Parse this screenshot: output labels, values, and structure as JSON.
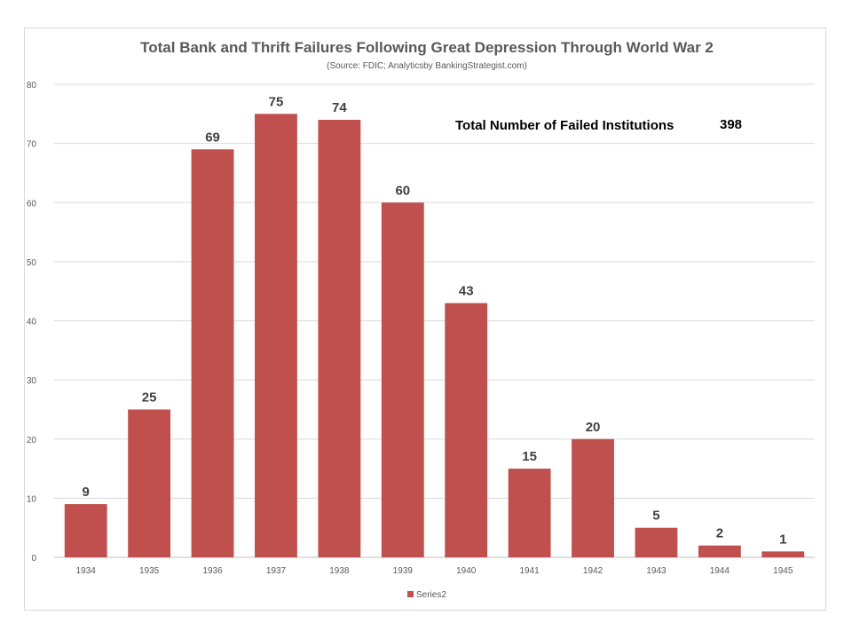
{
  "chart_data": {
    "type": "bar",
    "title": "Total Bank and Thrift Failures Following Great Depression Through World War 2",
    "subtitle": "(Source: FDIC; Analyticsby BankingStrategist.com)",
    "xlabel": "",
    "ylabel": "",
    "categories": [
      "1934",
      "1935",
      "1936",
      "1937",
      "1938",
      "1939",
      "1940",
      "1941",
      "1942",
      "1943",
      "1944",
      "1945"
    ],
    "series": [
      {
        "name": "Series2",
        "values": [
          9,
          25,
          69,
          75,
          74,
          60,
          43,
          15,
          20,
          5,
          2,
          1
        ],
        "color": "#c0504d"
      }
    ],
    "ylim": [
      0,
      80
    ],
    "yticks": [
      0,
      10,
      20,
      30,
      40,
      50,
      60,
      70,
      80
    ],
    "grid": true,
    "legend_position": "bottom",
    "annotation": {
      "label": "Total Number of Failed Institutions",
      "value": "398"
    },
    "colors": {
      "bar": "#c0504d",
      "grid": "#d9d9d9",
      "axis": "#bfbfbf",
      "text": "#595959"
    }
  }
}
